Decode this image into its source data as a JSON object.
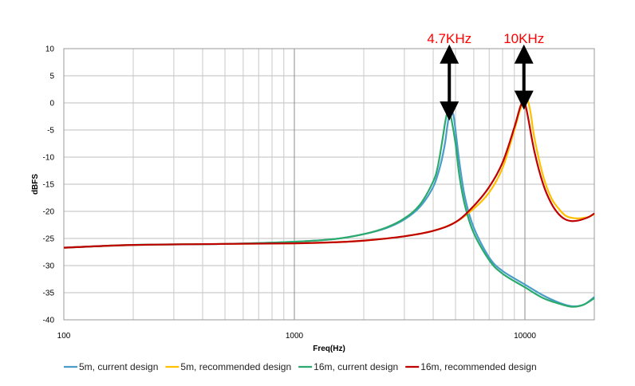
{
  "chart_data": {
    "type": "line",
    "title": "",
    "xlabel": "Freq(Hz)",
    "ylabel": "dBFS",
    "x_scale": "log",
    "xlim": [
      100,
      20000
    ],
    "ylim": [
      -40,
      10
    ],
    "x_ticks": [
      100,
      1000,
      10000
    ],
    "x_tick_labels": [
      "100",
      "1000",
      "10000"
    ],
    "y_ticks": [
      10,
      5,
      0,
      -5,
      -10,
      -15,
      -20,
      -25,
      -30,
      -35,
      -40
    ],
    "grid": true,
    "legend_position": "bottom",
    "series": [
      {
        "name": "5m, current design",
        "color": "#4a9cc9",
        "x": [
          100,
          200,
          500,
          1000,
          1500,
          2000,
          2500,
          3000,
          3500,
          4000,
          4300,
          4500,
          4600,
          4700,
          4800,
          4900,
          5000,
          5200,
          5500,
          6000,
          7000,
          8000,
          10000,
          12000,
          14000,
          16000,
          18000,
          20000
        ],
        "y": [
          -26.7,
          -26.2,
          -26.0,
          -25.6,
          -25.1,
          -24.2,
          -23.1,
          -21.5,
          -19.2,
          -15.5,
          -11.5,
          -7.5,
          -4.5,
          -2.2,
          -1.6,
          -2.3,
          -5.0,
          -11.0,
          -17.5,
          -23.0,
          -28.5,
          -31.0,
          -33.5,
          -35.5,
          -36.8,
          -37.5,
          -37.2,
          -35.8
        ]
      },
      {
        "name": "5m, recommended design",
        "color": "#ffc000",
        "x": [
          100,
          200,
          500,
          1000,
          1500,
          2000,
          3000,
          4000,
          5000,
          6000,
          7000,
          8000,
          9000,
          9500,
          10000,
          10300,
          10600,
          11000,
          12000,
          13000,
          14000,
          15000,
          16000,
          17000,
          18000,
          19000,
          20000
        ],
        "y": [
          -26.7,
          -26.2,
          -26.0,
          -25.9,
          -25.7,
          -25.4,
          -24.6,
          -23.6,
          -22.0,
          -19.5,
          -16.5,
          -12.0,
          -5.0,
          -1.5,
          0.6,
          0.4,
          -2.0,
          -6.5,
          -13.5,
          -17.5,
          -19.5,
          -20.8,
          -21.2,
          -21.3,
          -21.2,
          -21.0,
          -20.5
        ]
      },
      {
        "name": "16m, current design",
        "color": "#2aaa6c",
        "x": [
          100,
          200,
          500,
          1000,
          1500,
          2000,
          2500,
          3000,
          3500,
          4000,
          4200,
          4400,
          4500,
          4600,
          4700,
          4800,
          5000,
          5200,
          5500,
          6000,
          7000,
          8000,
          10000,
          12000,
          14000,
          16000,
          18000,
          20000
        ],
        "y": [
          -26.7,
          -26.2,
          -26.0,
          -25.6,
          -25.1,
          -24.2,
          -23.0,
          -21.3,
          -18.8,
          -14.5,
          -11.5,
          -6.5,
          -3.8,
          -1.9,
          -1.6,
          -3.0,
          -7.5,
          -13.5,
          -19.0,
          -24.0,
          -29.0,
          -31.5,
          -34.0,
          -36.0,
          -37.0,
          -37.6,
          -37.2,
          -36.0
        ]
      },
      {
        "name": "16m, recommended design",
        "color": "#c00000",
        "x": [
          100,
          200,
          500,
          1000,
          1500,
          2000,
          3000,
          4000,
          5000,
          6000,
          7000,
          8000,
          9000,
          9500,
          9800,
          10000,
          10300,
          11000,
          12000,
          13000,
          14000,
          15000,
          16000,
          17000,
          18000,
          19000,
          20000
        ],
        "y": [
          -26.7,
          -26.2,
          -26.0,
          -25.9,
          -25.7,
          -25.4,
          -24.6,
          -23.6,
          -22.0,
          -19.0,
          -15.5,
          -11.0,
          -4.5,
          -1.0,
          0.3,
          0.0,
          -2.5,
          -9.0,
          -15.0,
          -18.5,
          -20.5,
          -21.5,
          -21.8,
          -21.7,
          -21.4,
          -21.0,
          -20.4
        ]
      }
    ],
    "annotations": [
      {
        "text": "4.7KHz",
        "x": 4700,
        "arrow_from_y": 9,
        "arrow_to_y": -1.5
      },
      {
        "text": "10KHz",
        "x": 9900,
        "arrow_from_y": 9,
        "arrow_to_y": 0.5
      }
    ]
  }
}
